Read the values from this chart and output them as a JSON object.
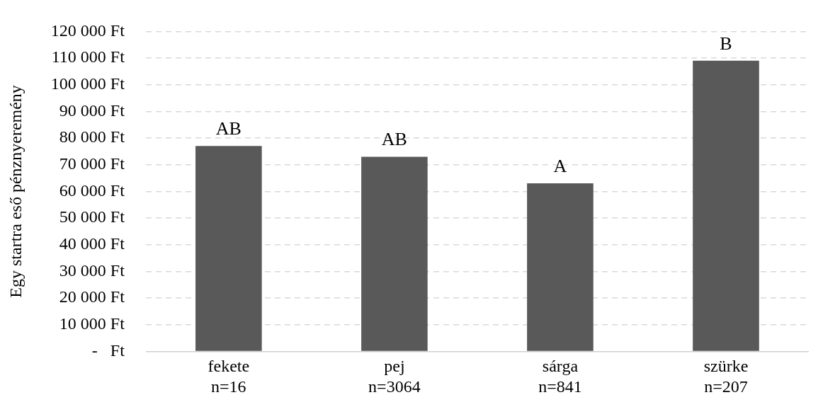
{
  "chart_data": {
    "type": "bar",
    "ylabel": "Egy startra eső pénznyeremény",
    "categories": [
      "fekete\nn=16",
      "pej\nn=3064",
      "sárga\nn=841",
      "szürke\nn=207"
    ],
    "values": [
      77000,
      73000,
      63000,
      109000
    ],
    "color": "#595959",
    "ylim": [
      0,
      120000
    ],
    "yticks": [
      {
        "value": 0,
        "label": "-   Ft"
      },
      {
        "value": 10000,
        "label": "10 000 Ft"
      },
      {
        "value": 20000,
        "label": "20 000 Ft"
      },
      {
        "value": 30000,
        "label": "30 000 Ft"
      },
      {
        "value": 40000,
        "label": "40 000 Ft"
      },
      {
        "value": 50000,
        "label": "50 000 Ft"
      },
      {
        "value": 60000,
        "label": "60 000 Ft"
      },
      {
        "value": 70000,
        "label": "70 000 Ft"
      },
      {
        "value": 80000,
        "label": "80 000 Ft"
      },
      {
        "value": 90000,
        "label": "90 000 Ft"
      },
      {
        "value": 100000,
        "label": "100 000 Ft"
      },
      {
        "value": 110000,
        "label": "110 000 Ft"
      },
      {
        "value": 120000,
        "label": "120 000 Ft"
      }
    ],
    "annotations": [
      {
        "text": "AB",
        "x": "fekete\nn=16",
        "y": 77000
      },
      {
        "text": "AB",
        "x": "pej\nn=3064",
        "y": 73000
      },
      {
        "text": "A",
        "x": "sárga\nn=841",
        "y": 63000
      },
      {
        "text": "B",
        "x": "szürke\nn=207",
        "y": 109000
      }
    ],
    "grid": "y",
    "legend": false
  }
}
